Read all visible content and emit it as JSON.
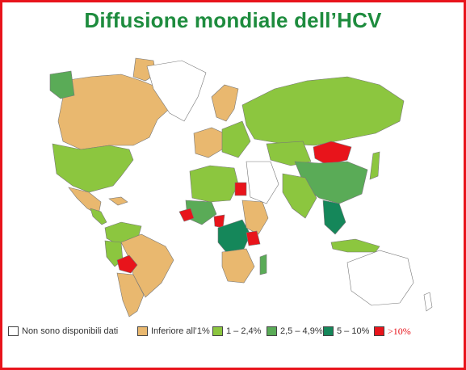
{
  "title": "Diffusione mondiale dell’HCV",
  "colors": {
    "border": "#e8141b",
    "title": "#1e8c3e",
    "ocean": "#ffffff",
    "no_data": "#ffffff",
    "lt1": "#e9b86f",
    "c1_24": "#8cc63f",
    "c25_49": "#5aab57",
    "c5_10": "#15875a",
    "gt10": "#e8141b"
  },
  "legend": [
    {
      "key": "no_data",
      "label": "Non sono disponibili dati"
    },
    {
      "key": "lt1",
      "label": "Inferiore all’1%"
    },
    {
      "key": "c1_24",
      "label": "1 – 2,4%"
    },
    {
      "key": "c25_49",
      "label": "2,5 – 4,9%"
    },
    {
      "key": "c5_10",
      "label": "5 – 10%"
    },
    {
      "key": "gt10",
      "label": ">10%"
    }
  ],
  "regions": [
    {
      "name": "alaska",
      "category": "c25_49"
    },
    {
      "name": "canada",
      "category": "lt1"
    },
    {
      "name": "greenland",
      "category": "no_data"
    },
    {
      "name": "arctic-islands",
      "category": "lt1"
    },
    {
      "name": "usa",
      "category": "c1_24"
    },
    {
      "name": "mexico",
      "category": "lt1"
    },
    {
      "name": "central-america",
      "category": "c1_24"
    },
    {
      "name": "caribbean",
      "category": "lt1"
    },
    {
      "name": "colombia-venezuela",
      "category": "c1_24"
    },
    {
      "name": "brazil",
      "category": "lt1"
    },
    {
      "name": "peru",
      "category": "c1_24"
    },
    {
      "name": "bolivia",
      "category": "gt10"
    },
    {
      "name": "argentina-chile",
      "category": "lt1"
    },
    {
      "name": "scandinavia",
      "category": "lt1"
    },
    {
      "name": "western-europe",
      "category": "lt1"
    },
    {
      "name": "eastern-europe",
      "category": "c1_24"
    },
    {
      "name": "russia",
      "category": "c1_24"
    },
    {
      "name": "north-africa",
      "category": "c1_24"
    },
    {
      "name": "egypt",
      "category": "gt10"
    },
    {
      "name": "west-africa",
      "category": "c25_49"
    },
    {
      "name": "guinea",
      "category": "gt10"
    },
    {
      "name": "cameroon",
      "category": "gt10"
    },
    {
      "name": "central-africa",
      "category": "c5_10"
    },
    {
      "name": "east-africa",
      "category": "lt1"
    },
    {
      "name": "tanzania",
      "category": "gt10"
    },
    {
      "name": "southern-africa",
      "category": "lt1"
    },
    {
      "name": "madagascar",
      "category": "c25_49"
    },
    {
      "name": "middle-east",
      "category": "no_data"
    },
    {
      "name": "central-asia",
      "category": "c1_24"
    },
    {
      "name": "mongolia",
      "category": "gt10"
    },
    {
      "name": "china",
      "category": "c25_49"
    },
    {
      "name": "india",
      "category": "c1_24"
    },
    {
      "name": "southeast-asia",
      "category": "c5_10"
    },
    {
      "name": "japan",
      "category": "c1_24"
    },
    {
      "name": "indonesia",
      "category": "c1_24"
    },
    {
      "name": "australia",
      "category": "no_data"
    }
  ]
}
